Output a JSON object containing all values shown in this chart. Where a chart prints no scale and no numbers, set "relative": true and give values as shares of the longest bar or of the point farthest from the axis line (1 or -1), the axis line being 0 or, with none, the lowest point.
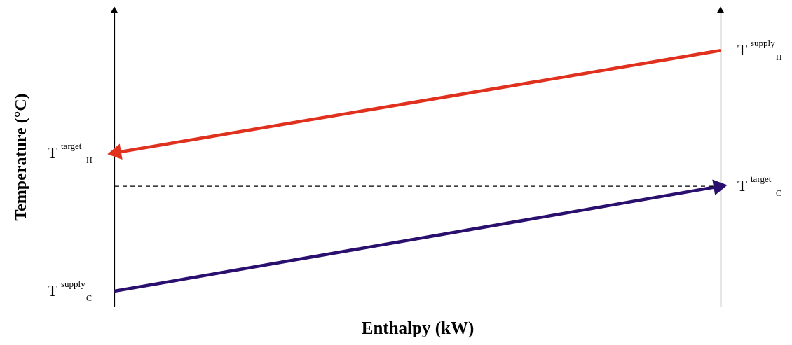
{
  "chart_data": {
    "type": "line",
    "xlabel": "Enthalpy (kW)",
    "ylabel": "Temperature (°C)",
    "relative": true,
    "categories": [
      null,
      null
    ],
    "series": [
      {
        "color": "#e0301e",
        "values": [
          0.6,
          1
        ]
      },
      {
        "color": "#2a0f6e",
        "values": [
          0.06,
          0.47
        ]
      }
    ],
    "ref_lines": [
      {
        "axis": "y",
        "value": 0.6,
        "color": "#000000",
        "line_style": "dashed"
      },
      {
        "axis": "y",
        "value": 0.47,
        "color": "#000000",
        "line_style": "dashed"
      }
    ],
    "annotations": [
      "T$^{target}$$_{H}$",
      "T$^{supply}$$_{H}$",
      "T$^{supply}$$_{C}$",
      "T$^{target}$$_{C}$"
    ],
    "grid": false,
    "line_style": "solid"
  }
}
